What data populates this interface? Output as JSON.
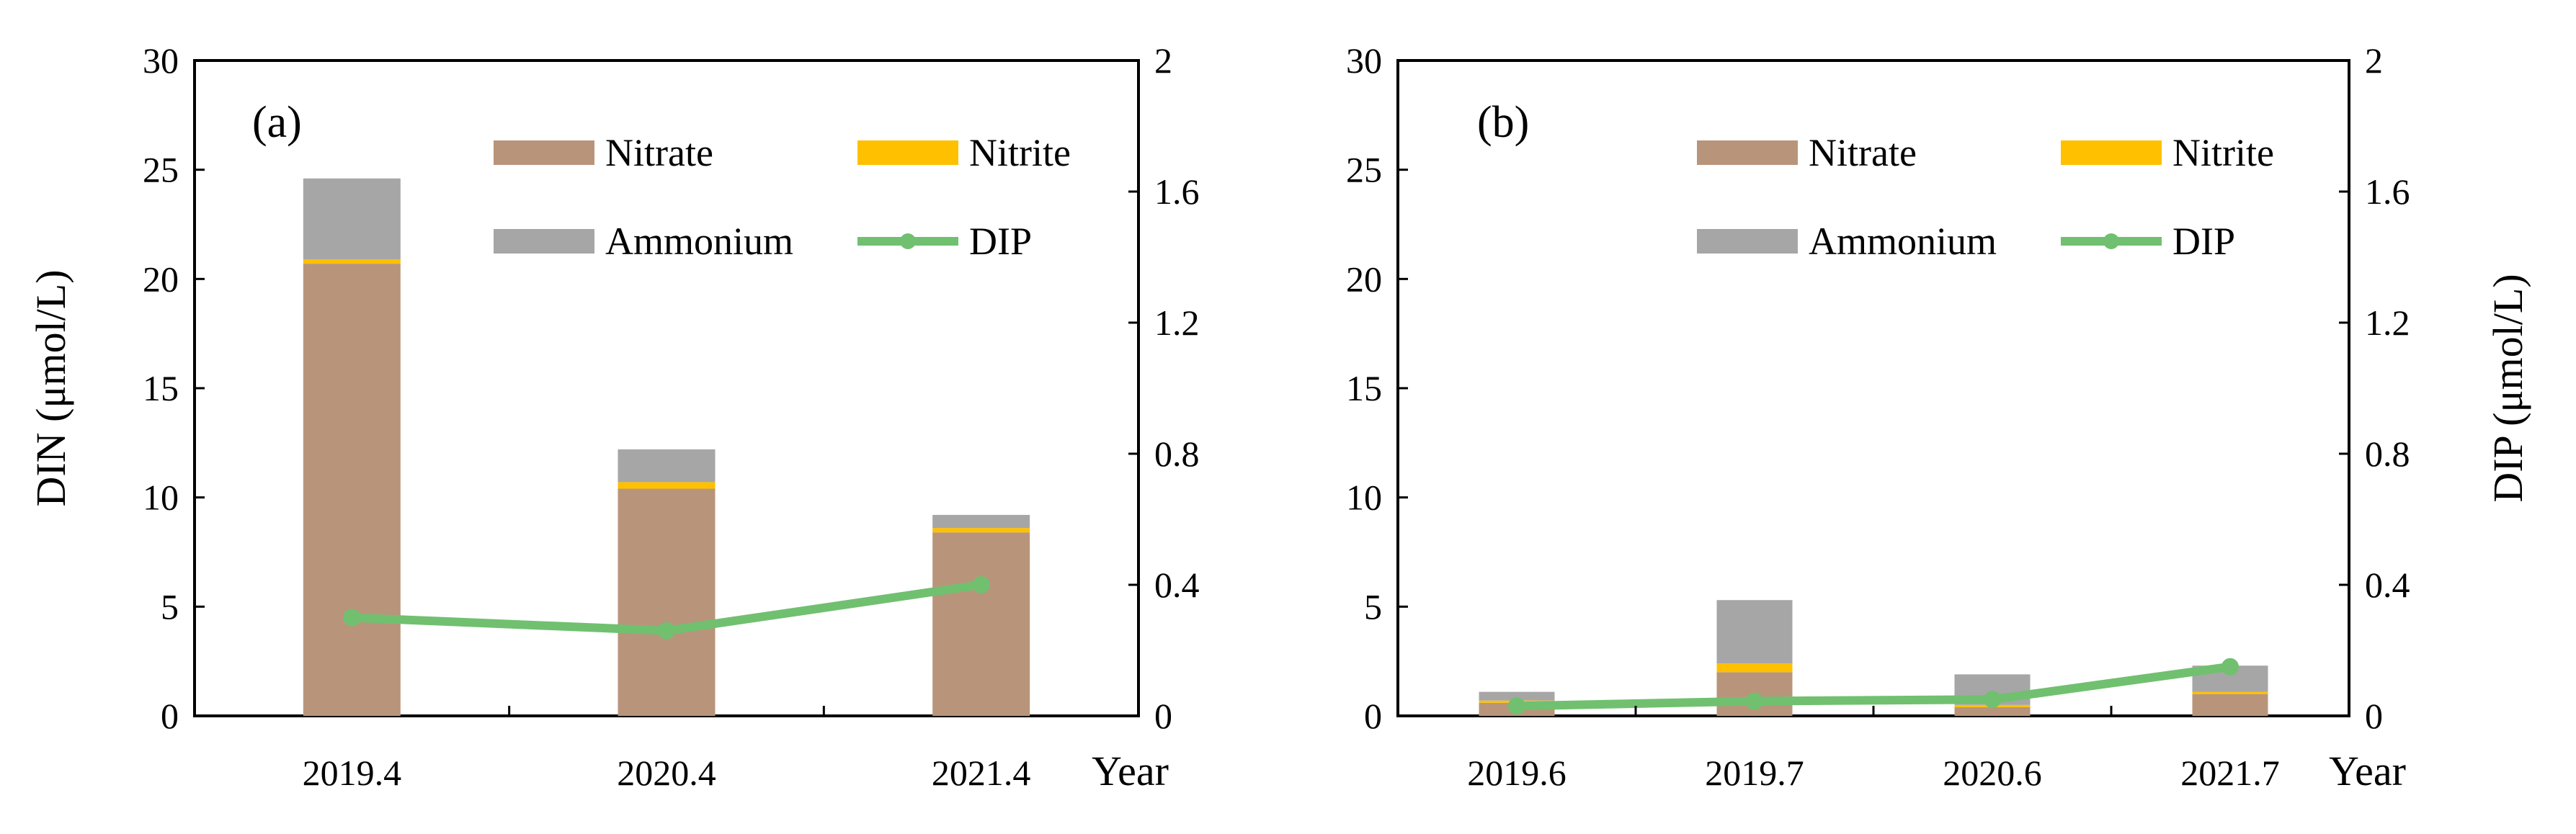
{
  "colors": {
    "nitrate": "#B8957A",
    "nitrite": "#FFC000",
    "ammonium": "#A6A6A6",
    "dip": "#70C070"
  },
  "axes": {
    "left_label": "DIN (μmol/L)",
    "right_label": "DIP (μmol/L)",
    "x_suffix": "Year",
    "left_ticks": [
      "0",
      "5",
      "10",
      "15",
      "20",
      "25",
      "30"
    ],
    "right_ticks": [
      "0",
      "0.4",
      "0.8",
      "1.2",
      "1.6",
      "2"
    ]
  },
  "legend": {
    "nitrate": "Nitrate",
    "nitrite": "Nitrite",
    "ammonium": "Ammonium",
    "dip": "DIP"
  },
  "chart_data": [
    {
      "type": "bar",
      "stacked": true,
      "panel_label": "(a)",
      "categories": [
        "2019.4",
        "2020.4",
        "2021.4"
      ],
      "xlabel": "Year",
      "ylabel": "DIN (μmol/L)",
      "ylim": [
        0,
        30
      ],
      "y2label": "DIP (μmol/L)",
      "y2lim": [
        0,
        2
      ],
      "series": [
        {
          "name": "Nitrate",
          "axis": "left",
          "values": [
            20.7,
            10.4,
            8.4
          ]
        },
        {
          "name": "Nitrite",
          "axis": "left",
          "values": [
            0.2,
            0.3,
            0.2
          ]
        },
        {
          "name": "Ammonium",
          "axis": "left",
          "values": [
            3.7,
            1.5,
            0.6
          ]
        },
        {
          "name": "DIP",
          "axis": "right",
          "type": "line",
          "values": [
            0.3,
            0.26,
            0.4
          ]
        }
      ]
    },
    {
      "type": "bar",
      "stacked": true,
      "panel_label": "(b)",
      "categories": [
        "2019.6",
        "2019.7",
        "2020.6",
        "2021.7"
      ],
      "xlabel": "Year",
      "ylabel": "DIN (μmol/L)",
      "ylim": [
        0,
        30
      ],
      "y2label": "DIP (μmol/L)",
      "y2lim": [
        0,
        2
      ],
      "series": [
        {
          "name": "Nitrate",
          "axis": "left",
          "values": [
            0.6,
            2.0,
            0.4,
            1.0
          ]
        },
        {
          "name": "Nitrite",
          "axis": "left",
          "values": [
            0.1,
            0.4,
            0.1,
            0.1
          ]
        },
        {
          "name": "Ammonium",
          "axis": "left",
          "values": [
            0.4,
            2.9,
            1.4,
            1.2
          ]
        },
        {
          "name": "DIP",
          "axis": "right",
          "type": "line",
          "values": [
            0.03,
            0.045,
            0.05,
            0.15
          ]
        }
      ]
    }
  ]
}
